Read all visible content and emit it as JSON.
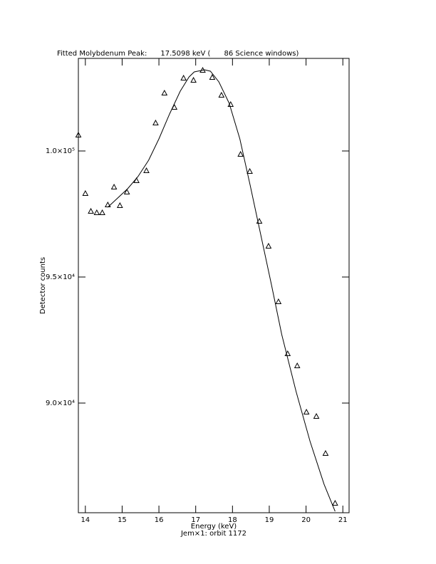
{
  "chart_data": {
    "type": "scatter",
    "title": "Fitted Molybdenum Peak:      17.5098 keV (      86 Science windows)",
    "x_label": "Energy (keV)",
    "subtitle": "Jem×1: orbit 1172",
    "y_label": "Detector counts",
    "xlim": [
      13.81,
      21.17
    ],
    "ylim": [
      85650,
      103672
    ],
    "xticks": [
      14,
      15,
      16,
      17,
      18,
      19,
      20,
      21
    ],
    "yticks": [
      {
        "value": 90000,
        "label": "9.0×10⁴"
      },
      {
        "value": 95000,
        "label": "9.5×10⁴"
      },
      {
        "value": 100000,
        "label": "1.0×10⁵"
      }
    ],
    "series": [
      {
        "type": "scatter",
        "color": "#000000",
        "x": [
          13.81,
          14.0,
          14.15,
          14.31,
          14.46,
          14.61,
          14.78,
          14.94,
          15.13,
          15.39,
          15.66,
          15.91,
          16.15,
          16.42,
          16.67,
          16.94,
          17.19,
          17.45,
          17.7,
          17.95,
          18.22,
          18.47,
          18.73,
          18.98,
          19.25,
          19.5,
          19.76,
          20.01,
          20.28,
          20.53,
          20.79
        ],
        "values": [
          100622,
          98305,
          97599,
          97542,
          97542,
          97853,
          98559,
          97825,
          98362,
          98814,
          99209,
          101102,
          102288,
          101723,
          102882,
          102797,
          103192,
          102910,
          102204,
          101836,
          99859,
          99181,
          97203,
          96215,
          94011,
          91949,
          91469,
          89632,
          89463,
          87994,
          86016
        ]
      },
      {
        "type": "line",
        "color": "#000000",
        "x": [
          14.61,
          14.86,
          15.15,
          15.43,
          15.72,
          16.0,
          16.29,
          16.58,
          16.82,
          16.96,
          17.24,
          17.4,
          17.63,
          17.91,
          18.2,
          18.48,
          18.77,
          19.06,
          19.34,
          19.73,
          20.11,
          20.49,
          20.79
        ],
        "values": [
          97768,
          98107,
          98503,
          98983,
          99633,
          100480,
          101469,
          102373,
          102938,
          103136,
          103220,
          103164,
          102740,
          101893,
          100480,
          98644,
          96667,
          94689,
          92712,
          90452,
          88474,
          86779,
          85706
        ]
      }
    ]
  }
}
